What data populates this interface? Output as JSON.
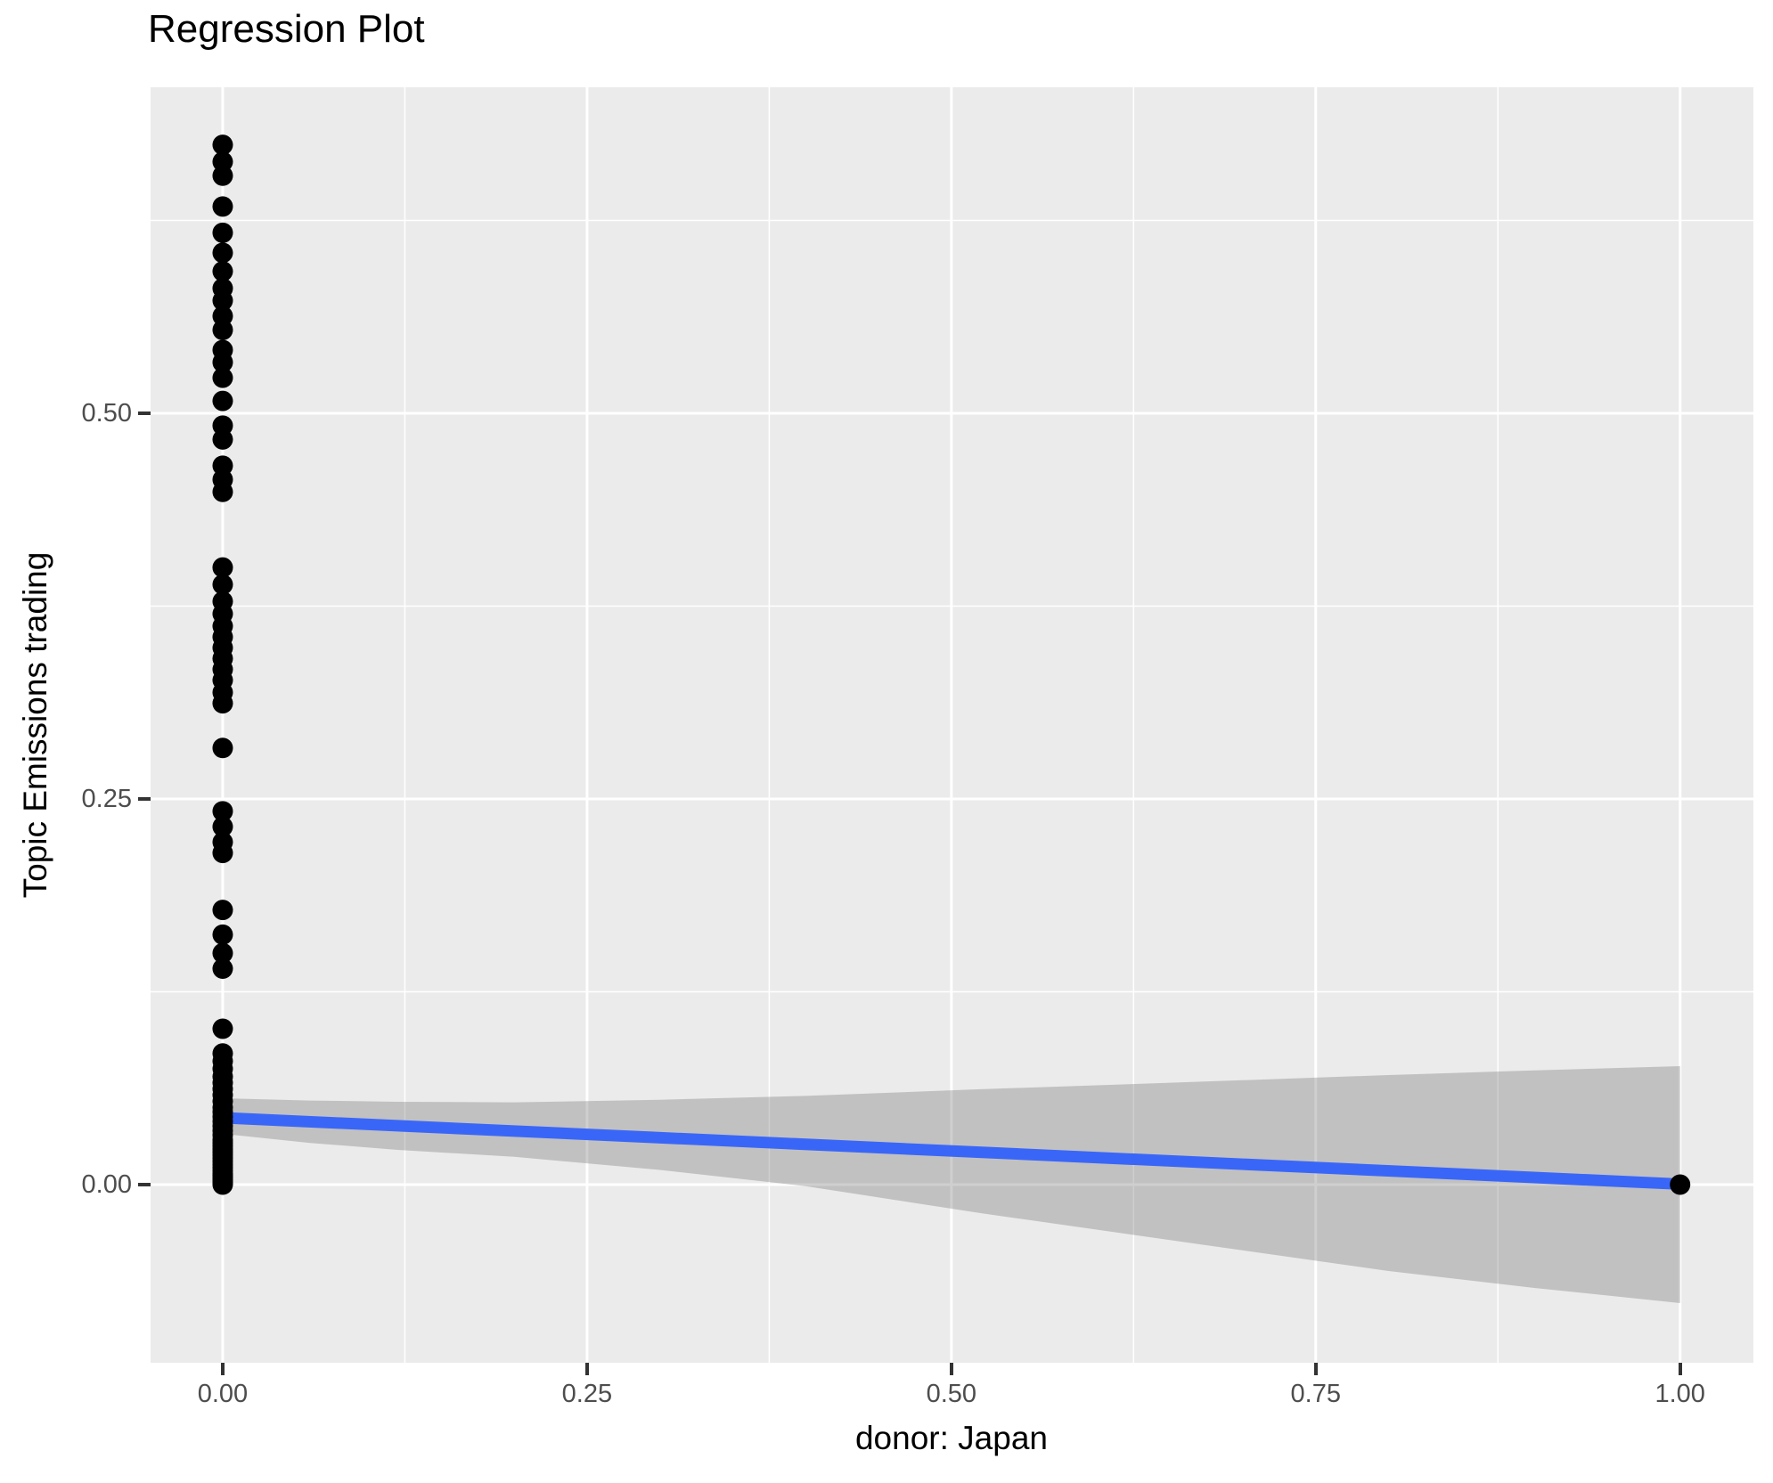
{
  "figure": {
    "title": "Regression Plot",
    "x_axis": {
      "title": "donor: Japan",
      "tick_values": [
        0,
        0.25,
        0.5,
        0.75,
        1.0
      ],
      "tick_labels": [
        "0.00",
        "0.25",
        "0.50",
        "0.75",
        "1.00"
      ],
      "minor_tick_values": [
        0.125,
        0.375,
        0.625,
        0.875
      ],
      "domain": [
        -0.0495,
        1.0503
      ]
    },
    "y_axis": {
      "title": "Topic Emissions trading",
      "tick_values": [
        0,
        0.25,
        0.5
      ],
      "tick_labels": [
        "0.00",
        "0.25",
        "0.50"
      ],
      "minor_tick_values": [
        0.125,
        0.375,
        0.625
      ],
      "domain": [
        -0.1155,
        0.7113
      ]
    },
    "colors": {
      "panel_background": "#EBEBEB",
      "grid_line": "#FFFFFF",
      "point": "#000000",
      "regression_line": "#3A66F8",
      "confidence_band": "rgba(110,110,110,0.33)",
      "tick_text": "#4D4D4D",
      "tick_mark": "#333333",
      "title_text": "#000000"
    }
  },
  "chart_data": {
    "type": "scatter",
    "title": "Regression Plot",
    "xlabel": "donor: Japan",
    "ylabel": "Topic Emissions trading",
    "xlim": [
      -0.0495,
      1.0503
    ],
    "ylim": [
      -0.1155,
      0.7113
    ],
    "grid": "on",
    "legend": "none",
    "series": [
      {
        "name": "observations",
        "type": "scatter",
        "marker_radius_px": 11.5,
        "points": [
          [
            0,
            0.674
          ],
          [
            0,
            0.663
          ],
          [
            0,
            0.654
          ],
          [
            0,
            0.634
          ],
          [
            0,
            0.617
          ],
          [
            0,
            0.604
          ],
          [
            0,
            0.592
          ],
          [
            0,
            0.581
          ],
          [
            0,
            0.573
          ],
          [
            0,
            0.563
          ],
          [
            0,
            0.554
          ],
          [
            0,
            0.541
          ],
          [
            0,
            0.533
          ],
          [
            0,
            0.523
          ],
          [
            0,
            0.508
          ],
          [
            0,
            0.492
          ],
          [
            0,
            0.483
          ],
          [
            0,
            0.466
          ],
          [
            0,
            0.457
          ],
          [
            0,
            0.449
          ],
          [
            0,
            0.4
          ],
          [
            0,
            0.389
          ],
          [
            0,
            0.378
          ],
          [
            0,
            0.37
          ],
          [
            0,
            0.362
          ],
          [
            0,
            0.355
          ],
          [
            0,
            0.348
          ],
          [
            0,
            0.341
          ],
          [
            0,
            0.334
          ],
          [
            0,
            0.327
          ],
          [
            0,
            0.319
          ],
          [
            0,
            0.312
          ],
          [
            0,
            0.283
          ],
          [
            0,
            0.242
          ],
          [
            0,
            0.232
          ],
          [
            0,
            0.222
          ],
          [
            0,
            0.215
          ],
          [
            0,
            0.178
          ],
          [
            0,
            0.162
          ],
          [
            0,
            0.15
          ],
          [
            0,
            0.14
          ],
          [
            0,
            0.101
          ],
          [
            0,
            0.085
          ],
          [
            0,
            0.08
          ],
          [
            0,
            0.075
          ],
          [
            0,
            0.07
          ],
          [
            0,
            0.066
          ],
          [
            0,
            0.062
          ],
          [
            0,
            0.058
          ],
          [
            0,
            0.054
          ],
          [
            0,
            0.05
          ],
          [
            0,
            0.047
          ],
          [
            0,
            0.044
          ],
          [
            0,
            0.041
          ],
          [
            0,
            0.038
          ],
          [
            0,
            0.035
          ],
          [
            0,
            0.032
          ],
          [
            0,
            0.029
          ],
          [
            0,
            0.027
          ],
          [
            0,
            0.025
          ],
          [
            0,
            0.023
          ],
          [
            0,
            0.021
          ],
          [
            0,
            0.019
          ],
          [
            0,
            0.017
          ],
          [
            0,
            0.015
          ],
          [
            0,
            0.013
          ],
          [
            0,
            0.011
          ],
          [
            0,
            0.009
          ],
          [
            0,
            0.007
          ],
          [
            0,
            0.006
          ],
          [
            0,
            0.005
          ],
          [
            0,
            0.004
          ],
          [
            0,
            0.003
          ],
          [
            0,
            0.002
          ],
          [
            0,
            0.001
          ],
          [
            0,
            0.0
          ],
          [
            1,
            0.0
          ]
        ]
      },
      {
        "name": "regression_line",
        "type": "line",
        "stroke_width_px": 13,
        "points": [
          [
            0,
            0.0433
          ],
          [
            1,
            0.0003
          ]
        ]
      },
      {
        "name": "confidence_band",
        "type": "area",
        "band": [
          {
            "x": 0.0,
            "lower": 0.0329,
            "upper": 0.056
          },
          {
            "x": 0.06,
            "lower": 0.027,
            "upper": 0.0545
          },
          {
            "x": 0.12,
            "lower": 0.0225,
            "upper": 0.0537
          },
          {
            "x": 0.2,
            "lower": 0.018,
            "upper": 0.0533
          },
          {
            "x": 0.3,
            "lower": 0.0095,
            "upper": 0.055
          },
          {
            "x": 0.4,
            "lower": -0.001,
            "upper": 0.0575
          },
          {
            "x": 0.52,
            "lower": -0.0185,
            "upper": 0.0618
          },
          {
            "x": 0.65,
            "lower": -0.036,
            "upper": 0.066
          },
          {
            "x": 0.8,
            "lower": -0.056,
            "upper": 0.071
          },
          {
            "x": 0.9,
            "lower": -0.067,
            "upper": 0.074
          },
          {
            "x": 1.0,
            "lower": -0.0768,
            "upper": 0.0768
          }
        ]
      }
    ]
  }
}
